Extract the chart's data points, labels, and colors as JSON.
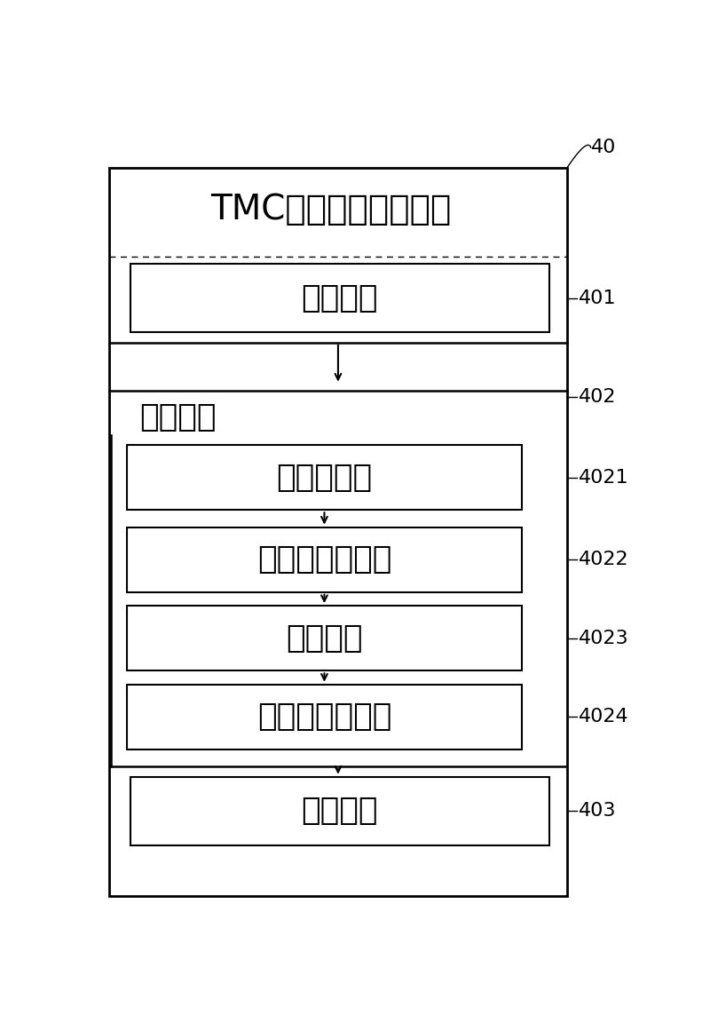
{
  "bg_color": "#ffffff",
  "box_color": "#ffffff",
  "border_color": "#000000",
  "text_color": "#000000",
  "labels": {
    "main": "TMC匹配表的生成装置",
    "401": "输入单元",
    "402": "生成单元",
    "4021": "映射子单元",
    "4022": "路径搜索子单元",
    "4023": "判断单元",
    "4024": "属性赋値子单元",
    "403": "输出单元"
  },
  "ref_ids": [
    "40",
    "401",
    "402",
    "4021",
    "4022",
    "4023",
    "4024",
    "403"
  ],
  "font_size_main": 28,
  "font_size_label": 26,
  "font_size_ref": 16
}
